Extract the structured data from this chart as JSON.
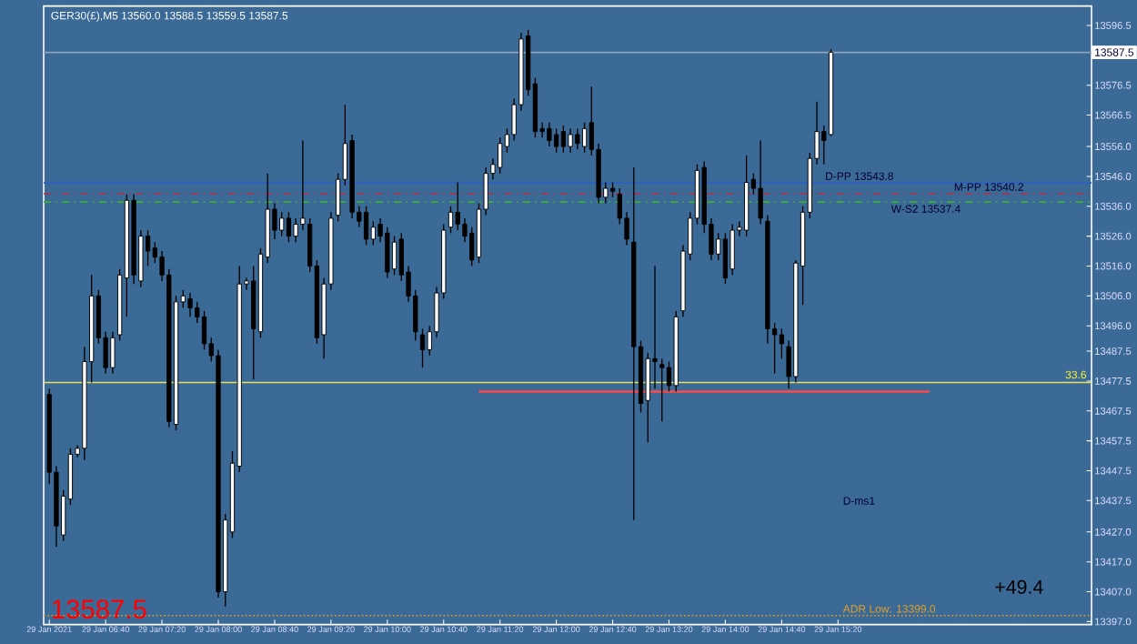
{
  "chart_data": {
    "type": "candlestick",
    "title": "GER30(£),M5 13560.0 13588.5 13559.5 13587.5",
    "x": [
      "2021-01-29T06:00",
      "2021-01-29T06:05",
      "2021-01-29T06:10",
      "2021-01-29T06:15",
      "2021-01-29T06:20",
      "2021-01-29T06:25",
      "2021-01-29T06:30",
      "2021-01-29T06:35",
      "2021-01-29T06:40",
      "2021-01-29T06:45",
      "2021-01-29T06:50",
      "2021-01-29T06:55",
      "2021-01-29T07:00",
      "2021-01-29T07:05",
      "2021-01-29T07:10",
      "2021-01-29T07:15",
      "2021-01-29T07:20",
      "2021-01-29T07:25",
      "2021-01-29T07:30",
      "2021-01-29T07:35",
      "2021-01-29T07:40",
      "2021-01-29T07:45",
      "2021-01-29T07:50",
      "2021-01-29T07:55",
      "2021-01-29T08:00",
      "2021-01-29T08:05",
      "2021-01-29T08:10",
      "2021-01-29T08:15",
      "2021-01-29T08:20",
      "2021-01-29T08:25",
      "2021-01-29T08:30",
      "2021-01-29T08:35",
      "2021-01-29T08:40",
      "2021-01-29T08:45",
      "2021-01-29T08:50",
      "2021-01-29T08:55",
      "2021-01-29T09:00",
      "2021-01-29T09:05",
      "2021-01-29T09:10",
      "2021-01-29T09:15",
      "2021-01-29T09:20",
      "2021-01-29T09:25",
      "2021-01-29T09:30",
      "2021-01-29T09:35",
      "2021-01-29T09:40",
      "2021-01-29T09:45",
      "2021-01-29T09:50",
      "2021-01-29T09:55",
      "2021-01-29T10:00",
      "2021-01-29T10:05",
      "2021-01-29T10:10",
      "2021-01-29T10:15",
      "2021-01-29T10:20",
      "2021-01-29T10:25",
      "2021-01-29T10:30",
      "2021-01-29T10:35",
      "2021-01-29T10:40",
      "2021-01-29T10:45",
      "2021-01-29T10:50",
      "2021-01-29T10:55",
      "2021-01-29T11:00",
      "2021-01-29T11:05",
      "2021-01-29T11:10",
      "2021-01-29T11:15",
      "2021-01-29T11:20",
      "2021-01-29T11:25",
      "2021-01-29T11:30",
      "2021-01-29T11:35",
      "2021-01-29T11:40",
      "2021-01-29T11:45",
      "2021-01-29T11:50",
      "2021-01-29T11:55",
      "2021-01-29T12:00",
      "2021-01-29T12:05",
      "2021-01-29T12:10",
      "2021-01-29T12:15",
      "2021-01-29T12:20",
      "2021-01-29T12:25",
      "2021-01-29T12:30",
      "2021-01-29T12:35",
      "2021-01-29T12:40",
      "2021-01-29T12:45",
      "2021-01-29T12:50",
      "2021-01-29T12:55",
      "2021-01-29T13:00",
      "2021-01-29T13:05",
      "2021-01-29T13:10",
      "2021-01-29T13:15",
      "2021-01-29T13:20",
      "2021-01-29T13:25",
      "2021-01-29T13:30",
      "2021-01-29T13:35",
      "2021-01-29T13:40",
      "2021-01-29T13:45",
      "2021-01-29T13:50",
      "2021-01-29T13:55",
      "2021-01-29T14:00",
      "2021-01-29T14:05",
      "2021-01-29T14:10",
      "2021-01-29T14:15",
      "2021-01-29T14:20",
      "2021-01-29T14:25",
      "2021-01-29T14:30",
      "2021-01-29T14:35",
      "2021-01-29T14:40",
      "2021-01-29T14:45",
      "2021-01-29T14:50",
      "2021-01-29T14:55",
      "2021-01-29T15:00",
      "2021-01-29T15:05",
      "2021-01-29T15:10",
      "2021-01-29T15:15"
    ],
    "ohlc": [
      [
        13473,
        13475,
        13443,
        13447
      ],
      [
        13447,
        13449,
        13422,
        13429
      ],
      [
        13426,
        13441,
        13424,
        13439
      ],
      [
        13438,
        13455,
        13436,
        13453
      ],
      [
        13453,
        13456,
        13452,
        13455
      ],
      [
        13455,
        13489,
        13451,
        13484
      ],
      [
        13484,
        13513,
        13477,
        13506
      ],
      [
        13506,
        13508,
        13490,
        13492
      ],
      [
        13492,
        13494,
        13480,
        13482
      ],
      [
        13482,
        13494,
        13480,
        13492
      ],
      [
        13493,
        13515,
        13491,
        13513
      ],
      [
        13512,
        13540,
        13499,
        13538
      ],
      [
        13538,
        13540,
        13510,
        13513
      ],
      [
        13511,
        13528,
        13509,
        13526
      ],
      [
        13526,
        13528,
        13516,
        13521
      ],
      [
        13522,
        13524,
        13517,
        13519
      ],
      [
        13519,
        13521,
        13511,
        13513
      ],
      [
        13513,
        13515,
        13462,
        13464
      ],
      [
        13463,
        13506,
        13461,
        13504
      ],
      [
        13504,
        13508,
        13502,
        13506
      ],
      [
        13505,
        13507,
        13499,
        13502
      ],
      [
        13502,
        13504,
        13497,
        13499
      ],
      [
        13499,
        13501,
        13488,
        13490
      ],
      [
        13490,
        13492,
        13484,
        13486
      ],
      [
        13486,
        13488,
        13405,
        13407
      ],
      [
        13407,
        13433,
        13402,
        13431
      ],
      [
        13427,
        13454,
        13425,
        13450
      ],
      [
        13449,
        13516,
        13447,
        13510
      ],
      [
        13510,
        13512,
        13508,
        13511
      ],
      [
        13511,
        13516,
        13478,
        13495
      ],
      [
        13494,
        13522,
        13492,
        13520
      ],
      [
        13519,
        13547,
        13517,
        13535
      ],
      [
        13535,
        13537,
        13525,
        13528
      ],
      [
        13528,
        13534,
        13526,
        13532
      ],
      [
        13532,
        13534,
        13524,
        13526
      ],
      [
        13526,
        13532,
        13524,
        13530
      ],
      [
        13530,
        13558,
        13528,
        13532
      ],
      [
        13530,
        13532,
        13514,
        13516
      ],
      [
        13516,
        13518,
        13490,
        13492
      ],
      [
        13493,
        13512,
        13485,
        13510
      ],
      [
        13510,
        13534,
        13508,
        13532
      ],
      [
        13533,
        13547,
        13531,
        13545
      ],
      [
        13545,
        13570,
        13543,
        13557
      ],
      [
        13558,
        13560,
        13532,
        13534
      ],
      [
        13534,
        13536,
        13529,
        13531
      ],
      [
        13534,
        13536,
        13523,
        13525
      ],
      [
        13525,
        13531,
        13523,
        13529
      ],
      [
        13530,
        13532,
        13524,
        13526
      ],
      [
        13527,
        13529,
        13512,
        13514
      ],
      [
        13515,
        13526,
        13513,
        13524
      ],
      [
        13525,
        13527,
        13511,
        13513
      ],
      [
        13514,
        13516,
        13504,
        13506
      ],
      [
        13506,
        13508,
        13491,
        13494
      ],
      [
        13493,
        13495,
        13482,
        13488
      ],
      [
        13488,
        13496,
        13486,
        13494
      ],
      [
        13494,
        13509,
        13492,
        13507
      ],
      [
        13507,
        13530,
        13505,
        13528
      ],
      [
        13529,
        13536,
        13527,
        13534
      ],
      [
        13534,
        13544,
        13528,
        13530
      ],
      [
        13530,
        13532,
        13524,
        13526
      ],
      [
        13527,
        13529,
        13516,
        13518
      ],
      [
        13519,
        13537,
        13517,
        13535
      ],
      [
        13535,
        13549,
        13533,
        13547
      ],
      [
        13547,
        13552,
        13545,
        13550
      ],
      [
        13549,
        13559,
        13547,
        13557
      ],
      [
        13556,
        13562,
        13554,
        13560
      ],
      [
        13560,
        13572,
        13558,
        13570
      ],
      [
        13570,
        13594,
        13568,
        13592
      ],
      [
        13593,
        13595,
        13573,
        13575
      ],
      [
        13577,
        13579,
        13559,
        13561
      ],
      [
        13562,
        13564,
        13559,
        13561
      ],
      [
        13562,
        13564,
        13556,
        13558
      ],
      [
        13560,
        13562,
        13554,
        13556
      ],
      [
        13561,
        13563,
        13554,
        13556
      ],
      [
        13556,
        13562,
        13554,
        13560
      ],
      [
        13560,
        13562,
        13555,
        13557
      ],
      [
        13556,
        13564,
        13554,
        13562
      ],
      [
        13564,
        13576,
        13553,
        13555
      ],
      [
        13555,
        13557,
        13537,
        13539
      ],
      [
        13539,
        13544,
        13537,
        13542
      ],
      [
        13542,
        13544,
        13539,
        13541
      ],
      [
        13540,
        13542,
        13530,
        13532
      ],
      [
        13532,
        13534,
        13523,
        13525
      ],
      [
        13524,
        13549,
        13431,
        13489
      ],
      [
        13489,
        13491,
        13467,
        13470
      ],
      [
        13471,
        13487,
        13457,
        13485
      ],
      [
        13485,
        13516,
        13475,
        13484
      ],
      [
        13483,
        13485,
        13464,
        13482
      ],
      [
        13482,
        13484,
        13474,
        13476
      ],
      [
        13476,
        13501,
        13474,
        13499
      ],
      [
        13501,
        13523,
        13499,
        13521
      ],
      [
        13520,
        13534,
        13518,
        13532
      ],
      [
        13532,
        13550,
        13530,
        13548
      ],
      [
        13549,
        13551,
        13527,
        13530
      ],
      [
        13530,
        13532,
        13518,
        13520
      ],
      [
        13520,
        13527,
        13518,
        13525
      ],
      [
        13525,
        13527,
        13510,
        13512
      ],
      [
        13515,
        13530,
        13513,
        13528
      ],
      [
        13528,
        13531,
        13526,
        13529
      ],
      [
        13528,
        13553,
        13526,
        13544
      ],
      [
        13545,
        13547,
        13540,
        13542
      ],
      [
        13542,
        13558,
        13530,
        13532
      ],
      [
        13531,
        13533,
        13490,
        13495
      ],
      [
        13495,
        13497,
        13480,
        13493
      ],
      [
        13493,
        13495,
        13485,
        13490
      ],
      [
        13489,
        13491,
        13475,
        13479
      ],
      [
        13479,
        13518,
        13477,
        13517
      ],
      [
        13516,
        13536,
        13503,
        13534
      ],
      [
        13534,
        13554,
        13532,
        13552
      ],
      [
        13552,
        13571,
        13550,
        13561
      ],
      [
        13561,
        13563,
        13550,
        13558
      ],
      [
        13560,
        13588.5,
        13559.5,
        13587.5
      ]
    ],
    "series": [
      {
        "type": "line",
        "color": "#ff4a4a",
        "x": [
          "2021-01-29T11:05",
          "2021-01-29T16:25"
        ],
        "values": [
          13474,
          13474
        ]
      }
    ],
    "xlim": [
      "2021-01-29T05:56",
      "2021-01-29T18:20"
    ],
    "ylim": [
      13396,
      13603
    ],
    "xticks": [
      {
        "value": "2021-01-29T06:00",
        "label": "29 Jan 2021"
      },
      {
        "value": "2021-01-29T06:40",
        "label": "29 Jan 06:40"
      },
      {
        "value": "2021-01-29T07:20",
        "label": "29 Jan 07:20"
      },
      {
        "value": "2021-01-29T08:00",
        "label": "29 Jan 08:00"
      },
      {
        "value": "2021-01-29T08:40",
        "label": "29 Jan 08:40"
      },
      {
        "value": "2021-01-29T09:20",
        "label": "29 Jan 09:20"
      },
      {
        "value": "2021-01-29T10:00",
        "label": "29 Jan 10:00"
      },
      {
        "value": "2021-01-29T10:40",
        "label": "29 Jan 10:40"
      },
      {
        "value": "2021-01-29T11:20",
        "label": "29 Jan 11:20"
      },
      {
        "value": "2021-01-29T12:00",
        "label": "29 Jan 12:00"
      },
      {
        "value": "2021-01-29T12:40",
        "label": "29 Jan 12:40"
      },
      {
        "value": "2021-01-29T13:20",
        "label": "29 Jan 13:20"
      },
      {
        "value": "2021-01-29T14:00",
        "label": "29 Jan 14:00"
      },
      {
        "value": "2021-01-29T14:40",
        "label": "29 Jan 14:40"
      },
      {
        "value": "2021-01-29T15:20",
        "label": "29 Jan 15:20"
      }
    ],
    "yticks": [
      {
        "value": 13596.5,
        "label": "13596.5"
      },
      {
        "value": 13576.5,
        "label": "13576.5"
      },
      {
        "value": 13566.5,
        "label": "13566.5"
      },
      {
        "value": 13556,
        "label": "13556.0"
      },
      {
        "value": 13546,
        "label": "13546.0"
      },
      {
        "value": 13536,
        "label": "13536.0"
      },
      {
        "value": 13526,
        "label": "13526.0"
      },
      {
        "value": 13516,
        "label": "13516.0"
      },
      {
        "value": 13506,
        "label": "13506.0"
      },
      {
        "value": 13496,
        "label": "13496.0"
      },
      {
        "value": 13487.5,
        "label": "13487.5"
      },
      {
        "value": 13477.5,
        "label": "13477.5"
      },
      {
        "value": 13467.5,
        "label": "13467.5"
      },
      {
        "value": 13457.5,
        "label": "13457.5"
      },
      {
        "value": 13447.5,
        "label": "13447.5"
      },
      {
        "value": 13437.5,
        "label": "13437.5"
      },
      {
        "value": 13427,
        "label": "13427.0"
      },
      {
        "value": 13417,
        "label": "13417.0"
      },
      {
        "value": 13407,
        "label": "13407.0"
      },
      {
        "value": 13397,
        "label": "13397.0"
      }
    ],
    "ref_lines": [
      {
        "axis": "y",
        "value": 13587.5,
        "label": "13587.5",
        "color": "#8ea4bc",
        "line_style": "solid"
      },
      {
        "axis": "y",
        "value": 13543.8,
        "label": "D-PP 13543.8",
        "color": "#2e5fc0",
        "line_style": "solid"
      },
      {
        "axis": "y",
        "value": 13540.2,
        "label": "M-PP 13540.2",
        "color": "#b0304a",
        "line_style": "dashed"
      },
      {
        "axis": "y",
        "value": 13537.4,
        "label": "W-S2 13537.4",
        "color": "#3cb030",
        "line_style": "dashed"
      },
      {
        "axis": "y",
        "value": 13477,
        "color": "#e8e060",
        "line_style": "solid"
      },
      {
        "axis": "y",
        "value": 13399,
        "label": "ADR Low: 13399.0",
        "color": "#e8a020",
        "line_style": "dotted"
      }
    ],
    "annotations": [
      "13587.5",
      "+49.4",
      "D-ms1",
      "33.6"
    ]
  }
}
